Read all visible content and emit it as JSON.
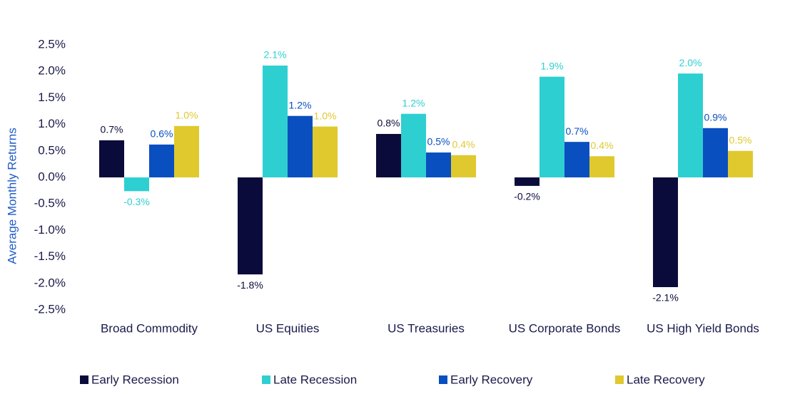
{
  "chart_data": {
    "type": "bar",
    "y_axis_label": "Average Monthly Returns",
    "categories": [
      "Broad Commodity",
      "US Equities",
      "US Treasuries",
      "US Corporate Bonds",
      "US High Yield Bonds"
    ],
    "series": [
      {
        "name": "Early Recession",
        "color": "#0b0b3b",
        "values": [
          0.7,
          -1.83,
          0.82,
          -0.16,
          -2.07
        ],
        "value_labels": [
          "0.7%",
          "-1.8%",
          "0.8%",
          "-0.2%",
          "-2.1%"
        ]
      },
      {
        "name": "Late Recession",
        "color": "#2ecfd1",
        "values": [
          -0.26,
          2.11,
          1.2,
          1.9,
          1.96
        ],
        "value_labels": [
          "-0.3%",
          "2.1%",
          "1.2%",
          "1.9%",
          "2.0%"
        ]
      },
      {
        "name": "Early Recovery",
        "color": "#0a4fc0",
        "values": [
          0.62,
          1.16,
          0.47,
          0.67,
          0.93
        ],
        "value_labels": [
          "0.6%",
          "1.2%",
          "0.5%",
          "0.7%",
          "0.9%"
        ]
      },
      {
        "name": "Late Recovery",
        "color": "#e0c92e",
        "values": [
          0.97,
          0.96,
          0.42,
          0.4,
          0.5
        ],
        "value_labels": [
          "1.0%",
          "1.0%",
          "0.4%",
          "0.4%",
          "0.5%"
        ]
      }
    ],
    "ylim": [
      -2.5,
      2.5
    ],
    "yticks": [
      {
        "value": 2.5,
        "label": "2.5%"
      },
      {
        "value": 2.0,
        "label": "2.0%"
      },
      {
        "value": 1.5,
        "label": "1.5%"
      },
      {
        "value": 1.0,
        "label": "1.0%"
      },
      {
        "value": 0.5,
        "label": "0.5%"
      },
      {
        "value": 0.0,
        "label": "0.0%"
      },
      {
        "value": -0.5,
        "label": "-0.5%"
      },
      {
        "value": -1.0,
        "label": "-1.0%"
      },
      {
        "value": -1.5,
        "label": "-1.5%"
      },
      {
        "value": -2.0,
        "label": "-2.0%"
      },
      {
        "value": -2.5,
        "label": "-2.5%"
      }
    ],
    "grid": false,
    "legend": "bottom"
  }
}
